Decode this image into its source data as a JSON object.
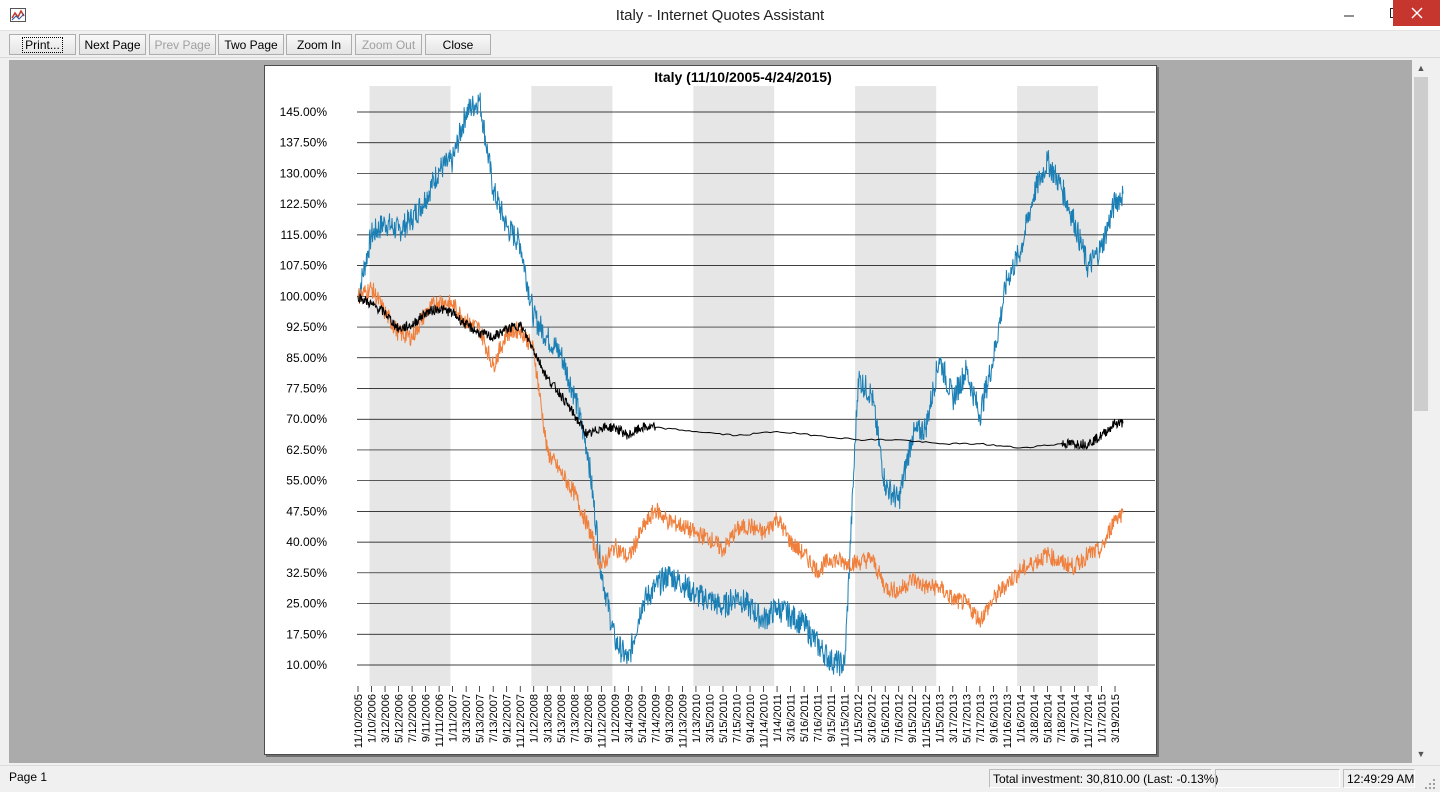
{
  "window": {
    "title": "Italy - Internet Quotes Assistant"
  },
  "toolbar": {
    "buttons": [
      {
        "label": "Print...",
        "enabled": true
      },
      {
        "label": "Next Page",
        "enabled": true
      },
      {
        "label": "Prev Page",
        "enabled": false
      },
      {
        "label": "Two Page",
        "enabled": true
      },
      {
        "label": "Zoom In",
        "enabled": true
      },
      {
        "label": "Zoom Out",
        "enabled": false
      },
      {
        "label": "Close",
        "enabled": true
      }
    ]
  },
  "status": {
    "page": "Page 1",
    "investment": "Total investment: 30,810.00 (Last: -0.13%)",
    "extra": "",
    "time": "12:49:29 AM"
  },
  "colors": {
    "series_blue": "#1a7fb5",
    "series_orange": "#f07f3c",
    "series_black": "#000000",
    "band": "#e6e6e6"
  },
  "chart_data": {
    "type": "line",
    "title": "Italy (11/10/2005-4/24/2015)",
    "ylim": [
      10,
      150
    ],
    "y_ticks": [
      "145.00%",
      "137.50%",
      "130.00%",
      "122.50%",
      "115.00%",
      "107.50%",
      "100.00%",
      "92.50%",
      "85.00%",
      "77.50%",
      "70.00%",
      "62.50%",
      "55.00%",
      "47.50%",
      "40.00%",
      "32.50%",
      "25.00%",
      "17.50%",
      "10.00%"
    ],
    "x_ticks": [
      "11/10/2005",
      "1/10/2006",
      "3/12/2006",
      "5/12/2006",
      "7/12/2006",
      "9/11/2006",
      "11/11/2006",
      "1/11/2007",
      "3/13/2007",
      "5/13/2007",
      "7/13/2007",
      "9/12/2007",
      "11/12/2007",
      "1/12/2008",
      "3/13/2008",
      "5/13/2008",
      "7/13/2008",
      "9/12/2008",
      "11/12/2008",
      "1/12/2009",
      "3/14/2009",
      "5/14/2009",
      "7/14/2009",
      "9/13/2009",
      "11/13/2009",
      "1/13/2010",
      "3/15/2010",
      "5/15/2010",
      "7/15/2010",
      "9/14/2010",
      "11/14/2010",
      "1/14/2011",
      "3/16/2011",
      "5/16/2011",
      "7/16/2011",
      "9/15/2011",
      "11/15/2011",
      "1/15/2012",
      "3/16/2012",
      "5/16/2012",
      "7/16/2012",
      "9/15/2012",
      "11/15/2012",
      "1/15/2013",
      "3/17/2013",
      "5/17/2013",
      "7/17/2013",
      "9/16/2013",
      "11/16/2013",
      "1/16/2014",
      "3/18/2014",
      "5/18/2014",
      "7/18/2014",
      "9/17/2014",
      "11/17/2014",
      "1/17/2015",
      "3/19/2015"
    ],
    "bands_year_alternate": true,
    "grid": "horizontal",
    "series": [
      {
        "color": "blue",
        "points": [
          [
            "11/10/2005",
            100
          ],
          [
            "1/10/2006",
            115
          ],
          [
            "3/12/2006",
            118
          ],
          [
            "5/12/2006",
            116
          ],
          [
            "7/12/2006",
            119
          ],
          [
            "9/11/2006",
            124
          ],
          [
            "11/11/2006",
            131
          ],
          [
            "1/11/2007",
            133
          ],
          [
            "3/13/2007",
            145
          ],
          [
            "5/13/2007",
            148
          ],
          [
            "7/13/2007",
            126
          ],
          [
            "9/12/2007",
            117
          ],
          [
            "11/12/2007",
            113
          ],
          [
            "1/12/2008",
            95
          ],
          [
            "3/13/2008",
            90
          ],
          [
            "5/13/2008",
            86
          ],
          [
            "7/13/2008",
            76
          ],
          [
            "9/12/2008",
            62
          ],
          [
            "11/12/2008",
            33
          ],
          [
            "1/12/2009",
            16
          ],
          [
            "3/14/2009",
            11
          ],
          [
            "5/14/2009",
            25
          ],
          [
            "7/14/2009",
            29
          ],
          [
            "9/13/2009",
            32
          ],
          [
            "11/13/2009",
            30
          ],
          [
            "1/13/2010",
            27
          ],
          [
            "3/15/2010",
            26
          ],
          [
            "5/15/2010",
            24
          ],
          [
            "7/15/2010",
            27
          ],
          [
            "9/14/2010",
            24
          ],
          [
            "11/14/2010",
            21
          ],
          [
            "1/14/2011",
            24
          ],
          [
            "3/16/2011",
            22
          ],
          [
            "5/16/2011",
            20
          ],
          [
            "7/16/2011",
            15
          ],
          [
            "9/15/2011",
            11
          ],
          [
            "11/15/2011",
            10
          ],
          [
            "1/15/2012",
            80
          ],
          [
            "3/16/2012",
            76
          ],
          [
            "5/16/2012",
            54
          ],
          [
            "7/16/2012",
            50
          ],
          [
            "9/15/2012",
            66
          ],
          [
            "11/15/2012",
            68
          ],
          [
            "1/15/2013",
            85
          ],
          [
            "3/17/2013",
            75
          ],
          [
            "5/17/2013",
            82
          ],
          [
            "7/17/2013",
            71
          ],
          [
            "9/16/2013",
            85
          ],
          [
            "11/16/2013",
            104
          ],
          [
            "1/16/2014",
            111
          ],
          [
            "3/18/2014",
            125
          ],
          [
            "5/18/2014",
            133
          ],
          [
            "7/18/2014",
            127
          ],
          [
            "9/17/2014",
            118
          ],
          [
            "11/17/2014",
            107
          ],
          [
            "1/17/2015",
            112
          ],
          [
            "3/19/2015",
            123
          ],
          [
            "4/24/2015",
            125
          ]
        ]
      },
      {
        "color": "orange",
        "points": [
          [
            "11/10/2005",
            100
          ],
          [
            "1/10/2006",
            102
          ],
          [
            "3/12/2006",
            96
          ],
          [
            "5/12/2006",
            91
          ],
          [
            "7/12/2006",
            90
          ],
          [
            "9/11/2006",
            96
          ],
          [
            "11/11/2006",
            99
          ],
          [
            "1/11/2007",
            98
          ],
          [
            "3/13/2007",
            94
          ],
          [
            "5/13/2007",
            92
          ],
          [
            "7/13/2007",
            83
          ],
          [
            "9/12/2007",
            91
          ],
          [
            "11/12/2007",
            92
          ],
          [
            "1/12/2008",
            87
          ],
          [
            "3/13/2008",
            62
          ],
          [
            "5/13/2008",
            57
          ],
          [
            "7/13/2008",
            52
          ],
          [
            "9/12/2008",
            44
          ],
          [
            "11/12/2008",
            34
          ],
          [
            "1/12/2009",
            39
          ],
          [
            "3/14/2009",
            36
          ],
          [
            "5/14/2009",
            43
          ],
          [
            "7/14/2009",
            48
          ],
          [
            "9/13/2009",
            45
          ],
          [
            "11/13/2009",
            44
          ],
          [
            "1/13/2010",
            42
          ],
          [
            "3/15/2010",
            41
          ],
          [
            "5/15/2010",
            38
          ],
          [
            "7/15/2010",
            43
          ],
          [
            "9/14/2010",
            44
          ],
          [
            "11/14/2010",
            42
          ],
          [
            "1/14/2011",
            46
          ],
          [
            "3/16/2011",
            40
          ],
          [
            "5/16/2011",
            37
          ],
          [
            "7/16/2011",
            33
          ],
          [
            "9/15/2011",
            36
          ],
          [
            "11/15/2011",
            35
          ],
          [
            "1/15/2012",
            35
          ],
          [
            "3/16/2012",
            36
          ],
          [
            "5/16/2012",
            29
          ],
          [
            "7/16/2012",
            28
          ],
          [
            "9/15/2012",
            31
          ],
          [
            "11/15/2012",
            29
          ],
          [
            "1/15/2013",
            29
          ],
          [
            "3/17/2013",
            26
          ],
          [
            "5/17/2013",
            25
          ],
          [
            "7/17/2013",
            21
          ],
          [
            "9/16/2013",
            26
          ],
          [
            "11/16/2013",
            30
          ],
          [
            "1/16/2014",
            33
          ],
          [
            "3/18/2014",
            35
          ],
          [
            "5/18/2014",
            37
          ],
          [
            "7/18/2014",
            35
          ],
          [
            "9/17/2014",
            34
          ],
          [
            "11/17/2014",
            37
          ],
          [
            "1/17/2015",
            38
          ],
          [
            "3/19/2015",
            46
          ],
          [
            "4/24/2015",
            47
          ]
        ]
      },
      {
        "color": "black",
        "points": [
          [
            "11/10/2005",
            100
          ],
          [
            "1/10/2006",
            98
          ],
          [
            "3/12/2006",
            96
          ],
          [
            "5/12/2006",
            92
          ],
          [
            "7/12/2006",
            93
          ],
          [
            "9/11/2006",
            96
          ],
          [
            "11/11/2006",
            97
          ],
          [
            "1/11/2007",
            96
          ],
          [
            "3/13/2007",
            93
          ],
          [
            "5/13/2007",
            91
          ],
          [
            "7/13/2007",
            90
          ],
          [
            "9/12/2007",
            92
          ],
          [
            "11/12/2007",
            93
          ],
          [
            "1/12/2008",
            87
          ],
          [
            "3/13/2008",
            80
          ],
          [
            "5/13/2008",
            76
          ],
          [
            "7/13/2008",
            71
          ],
          [
            "9/12/2008",
            66
          ],
          [
            "11/12/2008",
            68
          ],
          [
            "1/12/2009",
            68
          ],
          [
            "3/14/2009",
            66
          ],
          [
            "5/14/2009",
            68
          ],
          [
            "7/14/2009",
            68
          ],
          [
            "1/13/2010",
            67
          ],
          [
            "7/15/2010",
            66
          ],
          [
            "1/14/2011",
            67
          ],
          [
            "7/16/2011",
            66
          ],
          [
            "1/15/2012",
            65
          ],
          [
            "7/16/2012",
            65
          ],
          [
            "1/15/2013",
            64
          ],
          [
            "7/17/2013",
            64
          ],
          [
            "1/16/2014",
            63
          ],
          [
            "7/18/2014",
            64
          ],
          [
            "11/17/2014",
            64
          ],
          [
            "1/17/2015",
            66
          ],
          [
            "3/19/2015",
            69
          ],
          [
            "4/24/2015",
            69
          ]
        ]
      }
    ]
  }
}
